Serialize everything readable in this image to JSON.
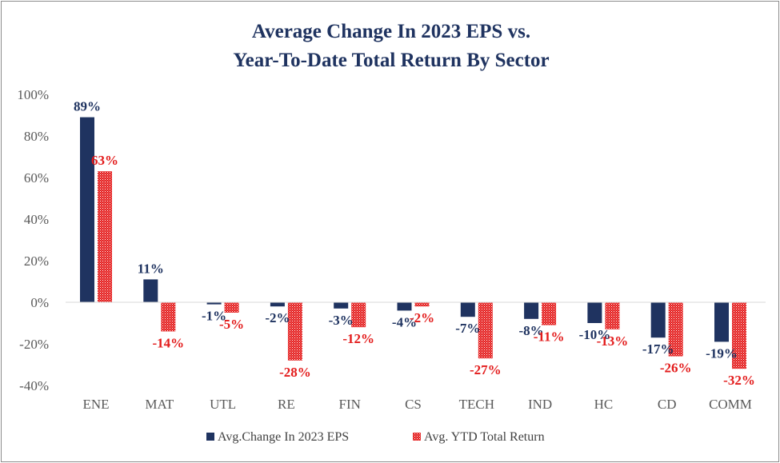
{
  "chart_data": {
    "type": "bar",
    "title_line1": "Average Change In 2023 EPS vs.",
    "title_line2": "Year-To-Date Total Return By Sector",
    "categories": [
      "ENE",
      "MAT",
      "UTL",
      "RE",
      "FIN",
      "CS",
      "TECH",
      "IND",
      "HC",
      "CD",
      "COMM"
    ],
    "series": [
      {
        "name": "Avg.Change In 2023 EPS",
        "values": [
          89,
          11,
          -1,
          -2,
          -3,
          -4,
          -7,
          -8,
          -10,
          -17,
          -19
        ],
        "labels": [
          "89%",
          "11%",
          "-1%",
          "-2%",
          "-3%",
          "-4%",
          "-7%",
          "-8%",
          "-10%",
          "-17%",
          "-19%"
        ],
        "color": "#1f3360"
      },
      {
        "name": "Avg. YTD Total Return",
        "values": [
          63,
          -14,
          -5,
          -28,
          -12,
          -2,
          -27,
          -11,
          -13,
          -26,
          -32
        ],
        "labels": [
          "63%",
          "-14%",
          "-5%",
          "-28%",
          "-12%",
          "-2%",
          "-27%",
          "-11%",
          "-13%",
          "-26%",
          "-32%"
        ],
        "color": "#e31b1b",
        "pattern": "dotted"
      }
    ],
    "y_ticks": [
      "100%",
      "80%",
      "60%",
      "40%",
      "20%",
      "0%",
      "-20%",
      "-40%"
    ],
    "ylim": [
      -40,
      100
    ],
    "grid": false,
    "legend_position": "bottom"
  }
}
